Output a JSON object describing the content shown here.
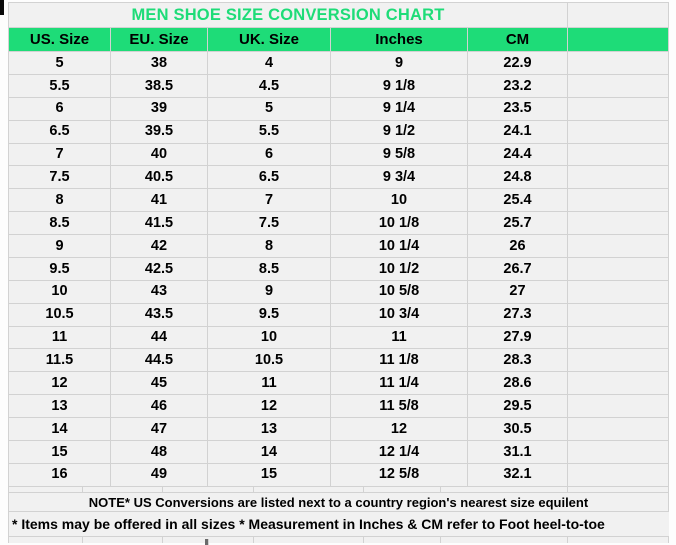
{
  "title": "MEN SHOE SIZE CONVERSION CHART",
  "chart_data": {
    "type": "table",
    "title": "MEN SHOE SIZE CONVERSION CHART",
    "columns": [
      "US. Size",
      "EU. Size",
      "UK. Size",
      "Inches",
      "CM"
    ],
    "rows": [
      [
        "5",
        "38",
        "4",
        "9",
        "22.9"
      ],
      [
        "5.5",
        "38.5",
        "4.5",
        "9 1/8",
        "23.2"
      ],
      [
        "6",
        "39",
        "5",
        "9 1/4",
        "23.5"
      ],
      [
        "6.5",
        "39.5",
        "5.5",
        "9 1/2",
        "24.1"
      ],
      [
        "7",
        "40",
        "6",
        "9 5/8",
        "24.4"
      ],
      [
        "7.5",
        "40.5",
        "6.5",
        "9 3/4",
        "24.8"
      ],
      [
        "8",
        "41",
        "7",
        "10",
        "25.4"
      ],
      [
        "8.5",
        "41.5",
        "7.5",
        "10 1/8",
        "25.7"
      ],
      [
        "9",
        "42",
        "8",
        "10 1/4",
        "26"
      ],
      [
        "9.5",
        "42.5",
        "8.5",
        "10 1/2",
        "26.7"
      ],
      [
        "10",
        "43",
        "9",
        "10 5/8",
        "27"
      ],
      [
        "10.5",
        "43.5",
        "9.5",
        "10 3/4",
        "27.3"
      ],
      [
        "11",
        "44",
        "10",
        "11",
        "27.9"
      ],
      [
        "11.5",
        "44.5",
        "10.5",
        "11 1/8",
        "28.3"
      ],
      [
        "12",
        "45",
        "11",
        "11 1/4",
        "28.6"
      ],
      [
        "13",
        "46",
        "12",
        "11 5/8",
        "29.5"
      ],
      [
        "14",
        "47",
        "13",
        "12",
        "30.5"
      ],
      [
        "15",
        "48",
        "14",
        "12 1/4",
        "31.1"
      ],
      [
        "16",
        "49",
        "15",
        "12 5/8",
        "32.1"
      ]
    ],
    "legend_position": "none",
    "grid": true
  },
  "notes": {
    "line1": "NOTE* US Conversions are listed next to a country region's nearest size equilent",
    "line2": "* Items may be offered in all sizes * Measurement in Inches & CM refer to Foot heel-to-toe"
  },
  "colors": {
    "accent_green": "#1edc78",
    "cell_bg": "#f1f1f1",
    "border": "#d2d2d2",
    "text": "#000000"
  }
}
